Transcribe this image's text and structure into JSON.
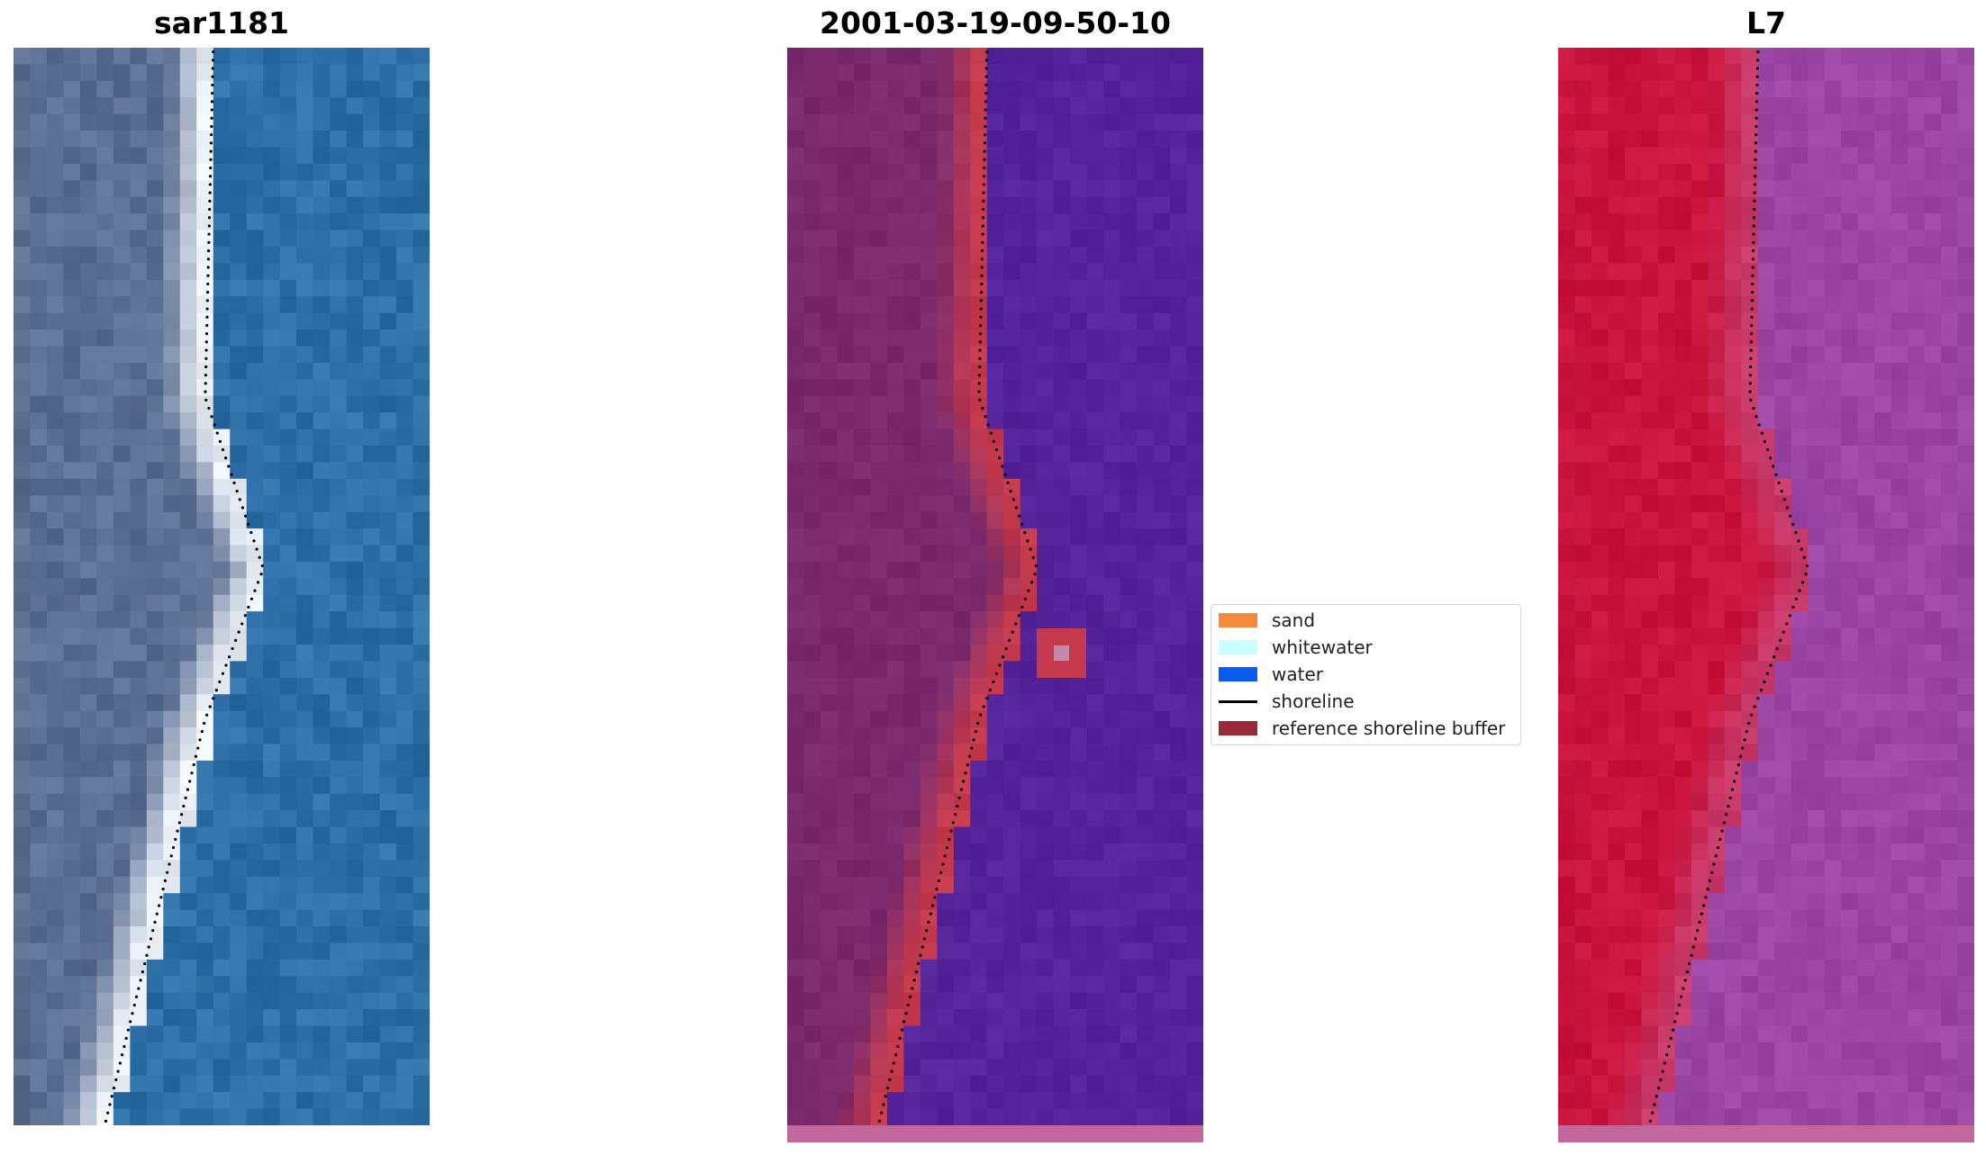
{
  "panels": {
    "rgb": {
      "title": "sar1181"
    },
    "classified": {
      "title": "2001-03-19-09-50-10"
    },
    "mndwi": {
      "title": "L7"
    }
  },
  "legend": {
    "items": [
      {
        "label": "sand",
        "color": "#f58a3c",
        "kind": "patch"
      },
      {
        "label": "whitewater",
        "color": "#c8ffff",
        "kind": "patch"
      },
      {
        "label": "water",
        "color": "#0a5cf0",
        "kind": "patch"
      },
      {
        "label": "shoreline",
        "color": "#000000",
        "kind": "line"
      },
      {
        "label": "reference shoreline buffer",
        "color": "#9a2a38",
        "kind": "patch"
      }
    ]
  },
  "colors": {
    "rgb_water": "#2d6fa6",
    "rgb_land": "#5b6f93",
    "rgb_beach": "#e8eef4",
    "class_land": "#7a2a6c",
    "class_water": "#55249a",
    "class_buffer": "#c43a4c",
    "class_strip": "#c2689c",
    "l7_land": "#c8143c",
    "l7_water": "#9b46a4",
    "l7_strip": "#c2689c"
  }
}
